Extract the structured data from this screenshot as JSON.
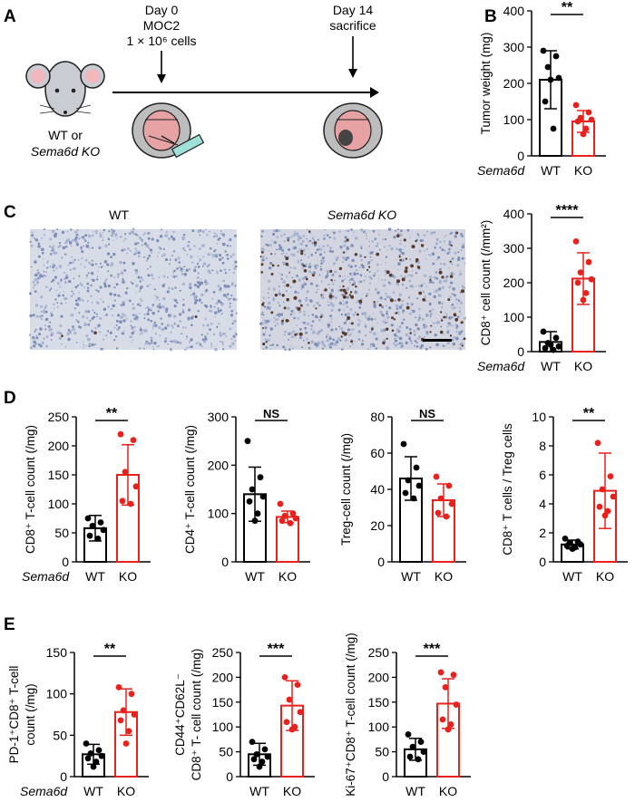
{
  "colors": {
    "wt": "#000000",
    "ko": "#e8211c",
    "mouse_body": "#c9ccd3",
    "mouse_ear": "#f2b7bd",
    "tissue_bg": "#d7dce7",
    "tissue_stain": "#5a3a2a"
  },
  "panel_a": {
    "label": "A",
    "day0": [
      "Day 0",
      "MOC2",
      "1 × 10⁶ cells"
    ],
    "day14": [
      "Day 14",
      "sacrifice"
    ],
    "mouse_label": [
      "WT or",
      "Sema6d KO"
    ]
  },
  "panel_c": {
    "label": "C",
    "title_wt": "WT",
    "title_ko": "Sema6d KO"
  },
  "panel_labels": {
    "b": "B",
    "d": "D",
    "e": "E"
  },
  "group_title": "Sema6d",
  "chart_data": [
    {
      "id": "B",
      "type": "bar",
      "categories": [
        "WT",
        "KO"
      ],
      "ylabel": "Tumor weight (mg)",
      "ylim": [
        0,
        400
      ],
      "yticks": [
        "0",
        "100",
        "200",
        "300",
        "400"
      ],
      "significance": "**",
      "values": [
        210,
        95
      ],
      "errors": [
        80,
        30
      ],
      "points": [
        [
          290,
          275,
          245,
          215,
          150,
          75,
          210
        ],
        [
          140,
          120,
          105,
          100,
          95,
          75,
          60
        ]
      ]
    },
    {
      "id": "C",
      "type": "bar",
      "categories": [
        "WT",
        "KO"
      ],
      "ylabel": "CD8⁺ cell count (/mm²)",
      "ylim": [
        0,
        400
      ],
      "yticks": [
        "0",
        "100",
        "200",
        "300",
        "400"
      ],
      "significance": "****",
      "values": [
        28,
        212
      ],
      "errors": [
        30,
        75
      ],
      "points": [
        [
          58,
          40,
          25,
          15,
          10,
          5,
          20
        ],
        [
          320,
          260,
          230,
          210,
          200,
          170,
          150
        ]
      ]
    },
    {
      "id": "D1",
      "type": "bar",
      "categories": [
        "WT",
        "KO"
      ],
      "ylabel": "CD8⁺ T-cell count (/mg)",
      "ylim": [
        0,
        250
      ],
      "yticks": [
        "0",
        "50",
        "100",
        "150",
        "200",
        "250"
      ],
      "significance": "**",
      "values": [
        58,
        150
      ],
      "errors": [
        22,
        52
      ],
      "points": [
        [
          75,
          68,
          62,
          55,
          45,
          40
        ],
        [
          220,
          210,
          155,
          130,
          105,
          100
        ]
      ]
    },
    {
      "id": "D2",
      "type": "bar",
      "categories": [
        "WT",
        "KO"
      ],
      "ylabel": "CD4⁺ T-cell count (/mg)",
      "ylim": [
        0,
        300
      ],
      "yticks": [
        "0",
        "100",
        "200",
        "300"
      ],
      "significance": "NS",
      "values": [
        140,
        93
      ],
      "errors": [
        56,
        12
      ],
      "points": [
        [
          250,
          175,
          150,
          135,
          125,
          100,
          85
        ],
        [
          120,
          100,
          95,
          90,
          85,
          80
        ]
      ]
    },
    {
      "id": "D3",
      "type": "bar",
      "categories": [
        "WT",
        "KO"
      ],
      "ylabel": "Treg-cell count (/mg)",
      "ylim": [
        0,
        80
      ],
      "yticks": [
        "0",
        "20",
        "40",
        "60",
        "80"
      ],
      "significance": "NS",
      "values": [
        46,
        34
      ],
      "errors": [
        12,
        9
      ],
      "points": [
        [
          65,
          52,
          45,
          42,
          38,
          35
        ],
        [
          47,
          42,
          35,
          32,
          27,
          25
        ]
      ]
    },
    {
      "id": "D4",
      "type": "bar",
      "categories": [
        "WT",
        "KO"
      ],
      "ylabel": "CD8⁺ T cells / Treg cells",
      "ylim": [
        0,
        10
      ],
      "yticks": [
        "0",
        "2",
        "4",
        "6",
        "8",
        "10"
      ],
      "significance": "**",
      "values": [
        1.2,
        4.9
      ],
      "errors": [
        0.3,
        2.6
      ],
      "points": [
        [
          1.6,
          1.4,
          1.3,
          1.2,
          1.1,
          1.0,
          0.9
        ],
        [
          8.2,
          5.9,
          5.0,
          4.5,
          3.8,
          3.5,
          3.2
        ]
      ]
    },
    {
      "id": "E1",
      "type": "bar",
      "categories": [
        "WT",
        "KO"
      ],
      "ylabel": [
        "PD-1⁺CD8⁺ T-cell",
        "count (/mg)"
      ],
      "ylim": [
        0,
        150
      ],
      "yticks": [
        "0",
        "50",
        "100",
        "150"
      ],
      "significance": "**",
      "values": [
        27,
        78
      ],
      "errors": [
        12,
        28
      ],
      "points": [
        [
          40,
          32,
          28,
          25,
          22,
          18,
          12
        ],
        [
          108,
          100,
          80,
          75,
          68,
          55,
          40
        ]
      ]
    },
    {
      "id": "E2",
      "type": "bar",
      "categories": [
        "WT",
        "KO"
      ],
      "ylabel": [
        "CD44⁺CD62L⁻",
        "CD8⁺ T- cell count (/mg)"
      ],
      "ylim": [
        0,
        250
      ],
      "yticks": [
        "0",
        "50",
        "100",
        "150",
        "200",
        "250"
      ],
      "significance": "***",
      "values": [
        45,
        143
      ],
      "errors": [
        22,
        50
      ],
      "points": [
        [
          70,
          55,
          45,
          40,
          35,
          30,
          20
        ],
        [
          200,
          185,
          155,
          130,
          110,
          100,
          95
        ]
      ]
    },
    {
      "id": "E3",
      "type": "bar",
      "categories": [
        "WT",
        "KO"
      ],
      "ylabel": "Ki-67⁺CD8⁺ T-cell count (/mg)",
      "ylim": [
        0,
        250
      ],
      "yticks": [
        "0",
        "50",
        "100",
        "150",
        "200",
        "250"
      ],
      "significance": "***",
      "values": [
        55,
        147
      ],
      "errors": [
        22,
        50
      ],
      "points": [
        [
          85,
          70,
          60,
          50,
          40,
          35
        ],
        [
          210,
          205,
          180,
          145,
          115,
          105,
          95
        ]
      ]
    }
  ]
}
